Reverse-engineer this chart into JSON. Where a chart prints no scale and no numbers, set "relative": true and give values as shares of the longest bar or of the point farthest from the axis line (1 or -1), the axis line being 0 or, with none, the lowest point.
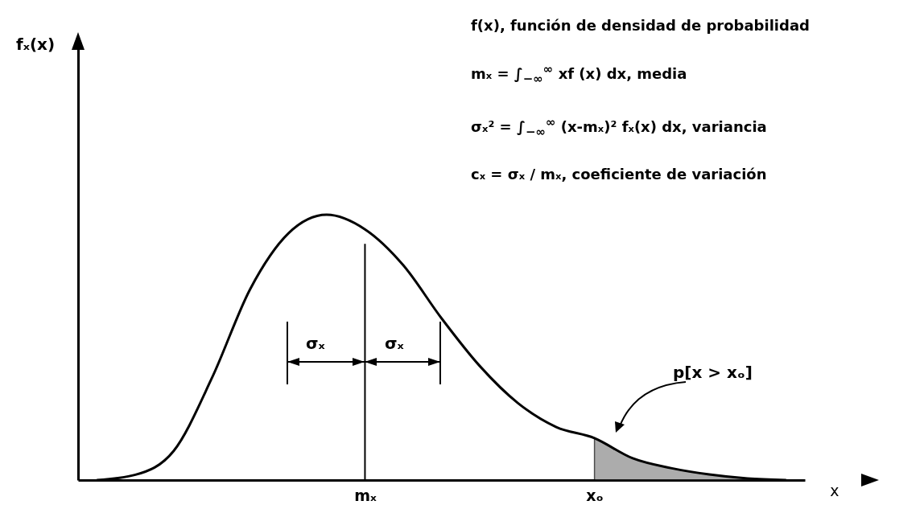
{
  "chart_data": {
    "type": "line",
    "relative": true,
    "xlabel": "x",
    "categories": [
      null,
      null,
      null,
      null,
      null,
      null,
      null,
      "mₓ",
      null,
      null,
      null,
      null,
      null,
      "xₒ",
      null,
      null,
      null,
      null,
      null
    ],
    "series": [
      {
        "color": "#000000",
        "values": [
          0,
          0.02,
          0.11,
          0.385,
          0.72,
          0.93,
          1,
          0.945,
          0.81,
          0.61,
          0.43,
          0.29,
          0.2,
          0.158,
          0.082,
          0.045,
          0.021,
          0.006,
          0
        ]
      },
      {
        "type": "area",
        "color": "#8a8a8a",
        "values": [
          null,
          null,
          null,
          null,
          null,
          null,
          null,
          null,
          null,
          null,
          null,
          null,
          null,
          0.158,
          0.082,
          0.045,
          0.021,
          0.006,
          0
        ]
      }
    ],
    "ref_lines": [
      {
        "axis": "x",
        "value": "mₓ"
      }
    ],
    "annotations": [
      "f(x), función de densidad de probabilidad",
      "mₓ = ∫$_{−∞}$$^{∞}$ xf (x) dx, media",
      "σₓ² = ∫$_{−∞}$$^{∞}$ (x-mₓ)² fₓ(x) dx, variancia",
      "cₓ = σₓ / mₓ, coeficiente de variación",
      "σₓ",
      "σₓ",
      "p[x > xₒ]",
      "fₓ(x)"
    ]
  }
}
